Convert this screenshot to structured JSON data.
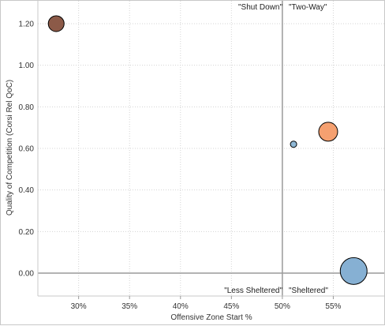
{
  "chart_data": {
    "type": "scatter",
    "title": "",
    "xlabel": "Offensive Zone Start %",
    "ylabel": "Quality of Competition (Corsi Rel QoC)",
    "xlim": [
      0.26,
      0.6
    ],
    "ylim": [
      -0.11,
      1.31
    ],
    "x_ticks": [
      0.3,
      0.35,
      0.4,
      0.45,
      0.5,
      0.55
    ],
    "x_tick_labels": [
      "30%",
      "35%",
      "40%",
      "45%",
      "50%",
      "55%"
    ],
    "y_ticks": [
      0.0,
      0.2,
      0.4,
      0.6,
      0.8,
      1.0,
      1.2
    ],
    "y_tick_labels": [
      "0.00",
      "0.20",
      "0.40",
      "0.60",
      "0.80",
      "1.00",
      "1.20"
    ],
    "grid": true,
    "reference_lines": {
      "x": 0.5,
      "y": 0.0
    },
    "quadrant_labels": {
      "top_left": "\"Shut Down\"",
      "top_right": "\"Two-Way\"",
      "bottom_left": "\"Less Sheltered\"",
      "bottom_right": "\"Sheltered\""
    },
    "points": [
      {
        "x": 0.278,
        "y": 1.2,
        "size": 10,
        "color": "#8c5a48"
      },
      {
        "x": 0.511,
        "y": 0.62,
        "size": 4,
        "color": "#8fb8d6"
      },
      {
        "x": 0.545,
        "y": 0.68,
        "size": 12,
        "color": "#f5a070"
      },
      {
        "x": 0.57,
        "y": 0.01,
        "size": 17,
        "color": "#86b0d3"
      }
    ]
  }
}
